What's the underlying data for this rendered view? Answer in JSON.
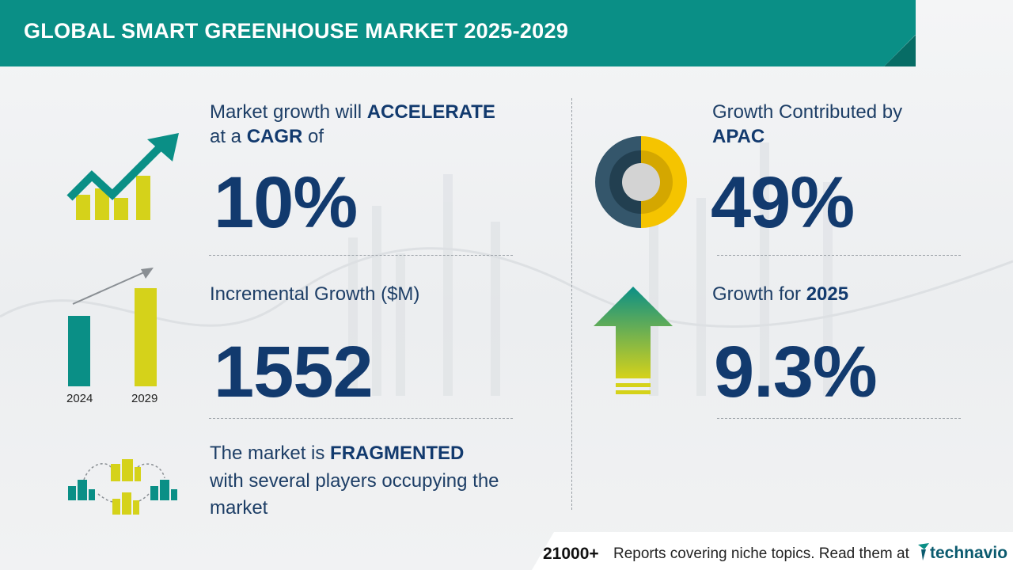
{
  "header": {
    "title": "GLOBAL SMART GREENHOUSE MARKET 2025-2029"
  },
  "cagr": {
    "line1_pre": "Market growth will ",
    "line1_bold": "ACCELERATE",
    "line2_pre": "at a ",
    "line2_bold": "CAGR",
    "line2_post": " of",
    "value": "10%"
  },
  "incremental": {
    "label": "Incremental Growth ($M)",
    "value": "1552",
    "year_start": "2024",
    "year_end": "2029"
  },
  "fragmented": {
    "line1_pre": "The market is ",
    "line1_bold": "FRAGMENTED",
    "line2": "with several players occupying the",
    "line3": "market"
  },
  "region": {
    "line1": "Growth Contributed by",
    "name": "APAC",
    "value": "49%"
  },
  "yoy": {
    "label_pre": "Growth for ",
    "year": "2025",
    "value": "9.3%"
  },
  "footer": {
    "count": "21000+",
    "text": "Reports covering niche topics. Read them at",
    "brand": "technavio"
  },
  "colors": {
    "teal": "#0a8f86",
    "navy": "#123a6e",
    "yellow": "#d5d21a",
    "donut_dark": "#34566b",
    "donut_yellow": "#f5c400"
  },
  "icons": [
    "growth-chart-icon",
    "bar-compare-icon",
    "players-network-icon",
    "donut-icon",
    "up-arrow-icon",
    "technavio-logo-icon"
  ]
}
